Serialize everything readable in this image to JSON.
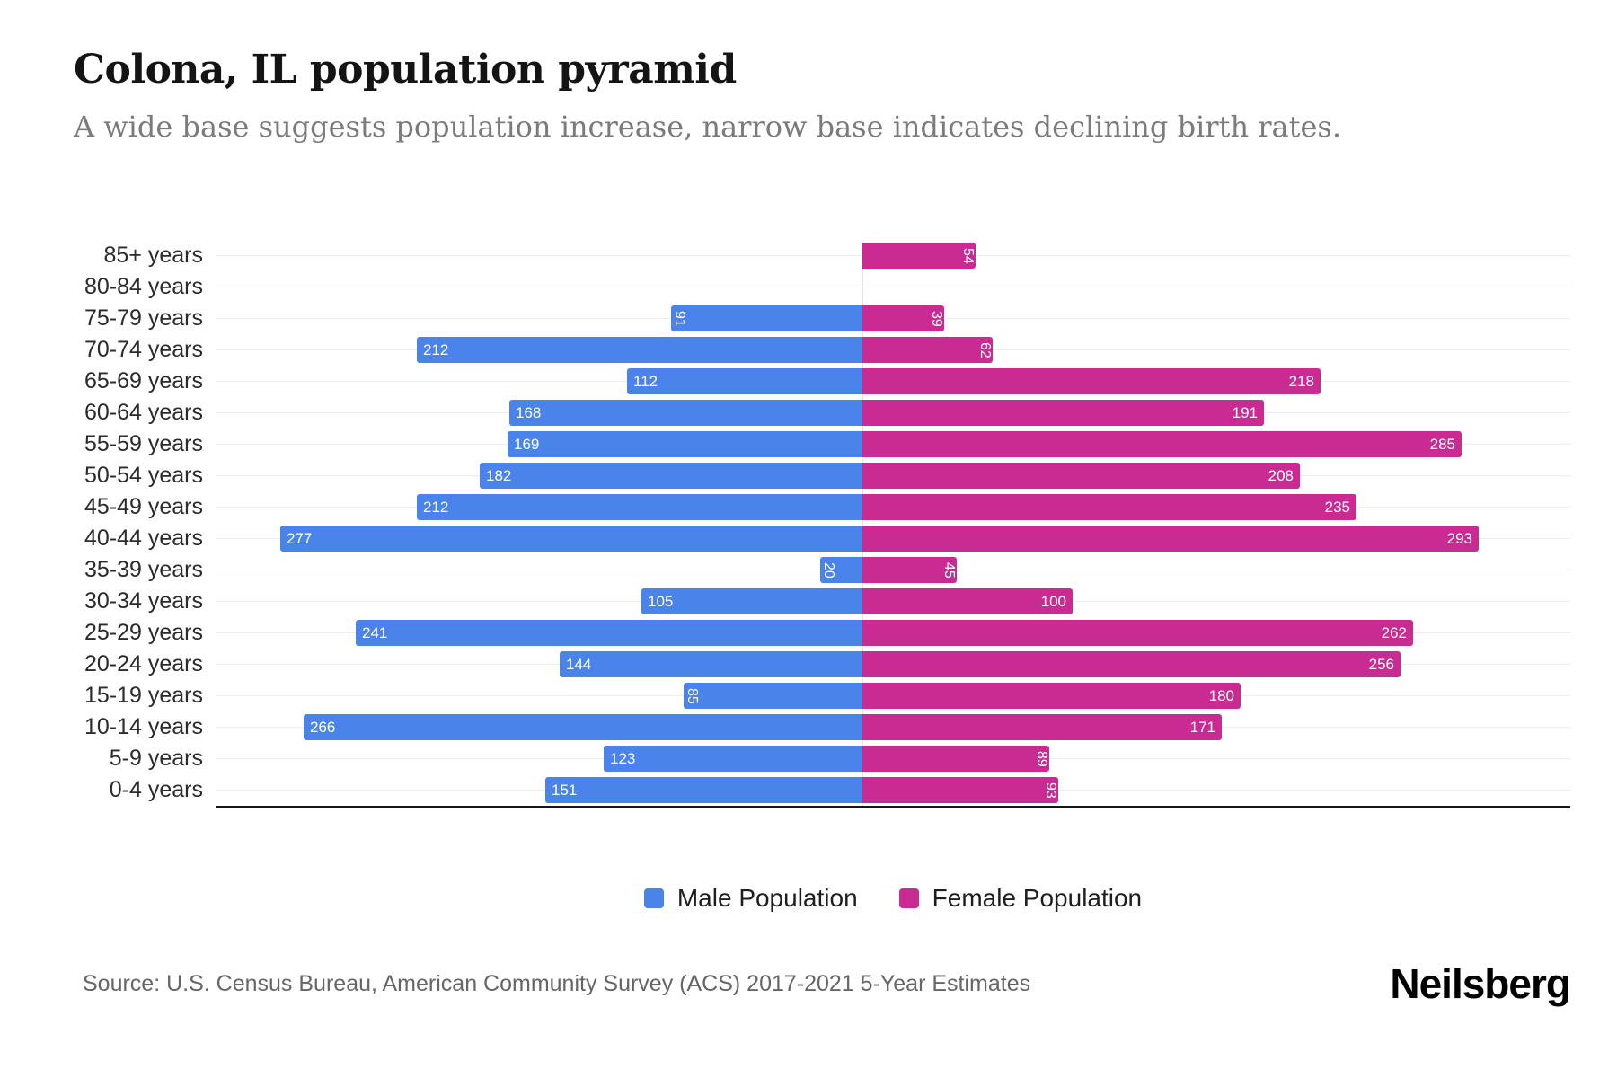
{
  "header": {
    "title": "Colona, IL population pyramid",
    "subtitle": "A wide base suggests population increase, narrow base indicates declining birth rates."
  },
  "legend": {
    "male": "Male Population",
    "female": "Female Population"
  },
  "footer": {
    "source": "Source: U.S. Census Bureau, American Community Survey (ACS) 2017-2021 5-Year Estimates",
    "brand": "Neilsberg"
  },
  "colors": {
    "male": "#4A83EA",
    "female": "#C92B92",
    "gridline": "#EDEDED",
    "axis": "#161616",
    "value_label": "#FFFFFF"
  },
  "chart_data": {
    "type": "bar",
    "variant": "population-pyramid",
    "title": "Colona, IL population pyramid",
    "categories": [
      "85+ years",
      "80-84 years",
      "75-79 years",
      "70-74 years",
      "65-69 years",
      "60-64 years",
      "55-59 years",
      "50-54 years",
      "45-49 years",
      "40-44 years",
      "35-39 years",
      "30-34 years",
      "25-29 years",
      "20-24 years",
      "15-19 years",
      "10-14 years",
      "5-9 years",
      "0-4 years"
    ],
    "series": [
      {
        "name": "Male Population",
        "side": "left",
        "color": "#4A83EA",
        "values": [
          0,
          0,
          91,
          212,
          112,
          168,
          169,
          182,
          212,
          277,
          20,
          105,
          241,
          144,
          85,
          266,
          123,
          151
        ]
      },
      {
        "name": "Female Population",
        "side": "right",
        "color": "#C92B92",
        "values": [
          54,
          0,
          39,
          62,
          218,
          191,
          285,
          208,
          235,
          293,
          45,
          100,
          262,
          256,
          180,
          171,
          89,
          93
        ]
      }
    ],
    "value_labels": "inside-outer-end, rotated 90deg when value is small",
    "xlim_left_max": 307,
    "xlim_right_max": 337,
    "grid": true,
    "legend_position": "bottom-center"
  }
}
